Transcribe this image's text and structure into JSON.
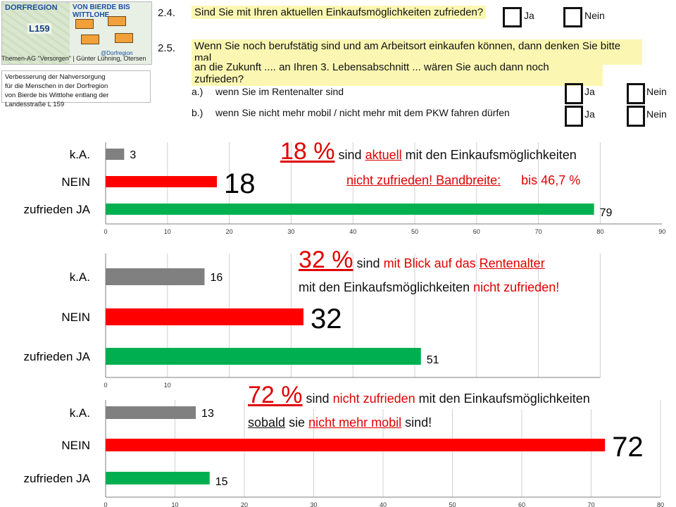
{
  "header": {
    "logo": {
      "brand_left": "DORFREGION",
      "brand_right": "VON BIERDE BIS WITTLOHE",
      "route": "L159",
      "facebook": "@Dorfregion"
    },
    "subtitle": "Themen-AG \"Versorgen\" | Günter Lühning, Otersen",
    "note_lines": [
      "Verbesserung der Nahversorgung",
      "für die Menschen in der Dorfregion",
      "von Bierde bis Wittlohe entlang der Landesstraße L 159"
    ]
  },
  "questions": {
    "q24": {
      "number": "2.4.",
      "text": "Sind Sie mit Ihren aktuellen Einkaufsmöglichkeiten zufrieden?",
      "yes": "Ja",
      "no": "Nein"
    },
    "q25": {
      "number": "2.5.",
      "line1": "Wenn Sie noch berufstätig sind und am Arbeitsort einkaufen können, dann denken Sie bitte mal",
      "line2": "an die Zukunft .... an Ihren 3. Lebensabschnitt ... wären Sie auch dann noch zufrieden?",
      "a_label": "a.)",
      "a_text": "wenn Sie im Rentenalter sind",
      "b_label": "b.)",
      "b_text": "wenn Sie nicht mehr mobil / nicht mehr mit dem PKW fahren dürfen",
      "yes": "Ja",
      "no": "Nein"
    }
  },
  "annotations": [
    {
      "pct": "18 %",
      "t1": "sind",
      "t2": "aktuell",
      "t3": "mit den Einkaufsmöglichkeiten",
      "t4": "nicht zufrieden! Bandbreite:",
      "t5": "bis  46,7 %"
    },
    {
      "pct": "32 %",
      "t1": "sind",
      "t2": "mit Blick auf das",
      "t3": "Rentenalter",
      "t4": "mit den Einkaufsmöglichkeiten",
      "t5": "nicht zufrieden!"
    },
    {
      "pct": "72 %",
      "t1": "sind",
      "t2": "nicht zufrieden",
      "t3": "mit den Einkaufsmöglichkeiten",
      "t4": "sobald",
      "t5": "sie",
      "t6": "nicht mehr mobil",
      "t7": "sind!"
    }
  ],
  "chart_data": [
    {
      "type": "bar",
      "orientation": "horizontal",
      "categories": [
        "k.A.",
        "NEIN",
        "zufrieden JA"
      ],
      "values": [
        3,
        18,
        79
      ],
      "highlight": "18",
      "xlim": [
        0,
        90
      ],
      "ticks": [
        0,
        10,
        20,
        30,
        40,
        50,
        60,
        70,
        80,
        90
      ],
      "grid": true
    },
    {
      "type": "bar",
      "orientation": "horizontal",
      "categories": [
        "k.A.",
        "NEIN",
        "zufrieden JA"
      ],
      "values": [
        16,
        32,
        51
      ],
      "highlight": "32",
      "xlim": [
        0,
        80
      ],
      "ticks": [
        0,
        10
      ],
      "grid": true
    },
    {
      "type": "bar",
      "orientation": "horizontal",
      "categories": [
        "k.A.",
        "NEIN",
        "zufrieden JA"
      ],
      "values": [
        13,
        72,
        15
      ],
      "highlight": "72",
      "xlim": [
        0,
        80
      ],
      "ticks": [
        0,
        10,
        20,
        30,
        40,
        50,
        60,
        70,
        80
      ],
      "grid": true
    }
  ],
  "colors": {
    "ka": "#808080",
    "nein": "#ff0000",
    "ja": "#00b050",
    "question_bg": "#fbf7b2",
    "accent_red": "#e00000"
  }
}
